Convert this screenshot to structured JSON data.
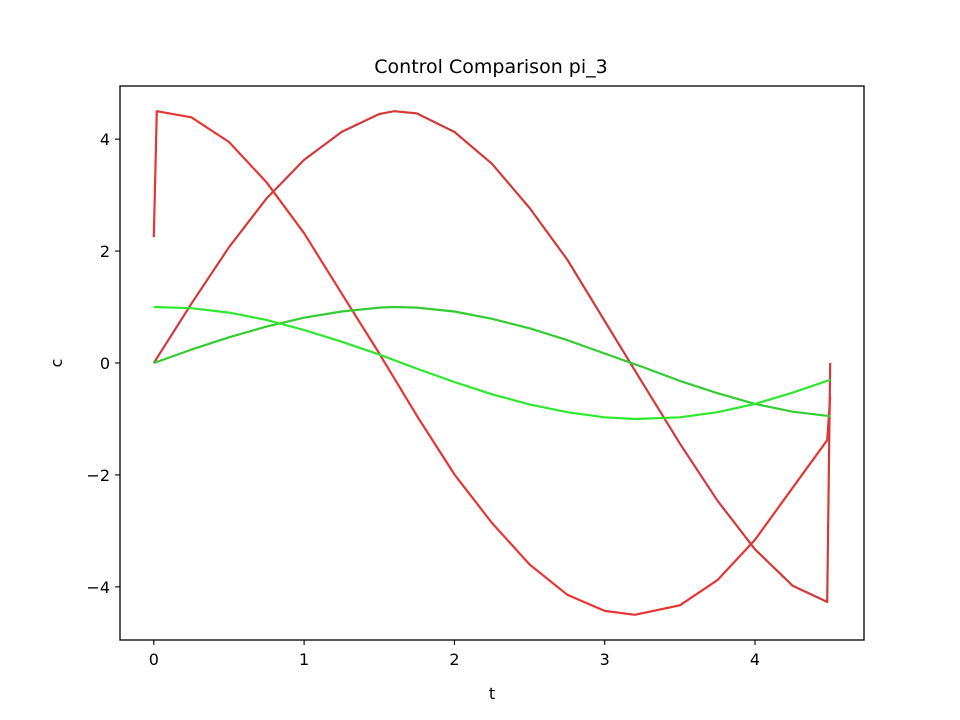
{
  "chart_data": {
    "type": "line",
    "title": "Control Comparison pi_3",
    "xlabel": "t",
    "ylabel": "c",
    "xlim": [
      -0.225,
      4.725
    ],
    "ylim": [
      -4.95,
      4.95
    ],
    "xticks": [
      0,
      1,
      2,
      3,
      4
    ],
    "yticks": [
      -4,
      -2,
      0,
      2,
      4
    ],
    "xtick_labels": [
      "0",
      "1",
      "2",
      "3",
      "4"
    ],
    "ytick_labels": [
      "−4",
      "−2",
      "0",
      "2",
      "4"
    ],
    "grid": false,
    "legend": "none",
    "series": [
      {
        "color": "#d03a3a",
        "x": [
          0,
          0.25,
          0.5,
          0.75,
          1.0,
          1.25,
          1.5,
          1.6,
          1.75,
          2.0,
          2.25,
          2.5,
          2.75,
          3.0,
          3.25,
          3.5,
          3.75,
          4.0,
          4.25,
          4.48,
          4.5
        ],
        "y": [
          0.0,
          1.06,
          2.07,
          2.94,
          3.63,
          4.13,
          4.45,
          4.5,
          4.46,
          4.13,
          3.56,
          2.77,
          1.85,
          0.75,
          -0.35,
          -1.44,
          -2.46,
          -3.33,
          -3.98,
          -4.27,
          0.0
        ]
      },
      {
        "color": "#e53535",
        "x": [
          0,
          0.02,
          0.25,
          0.5,
          0.75,
          1.0,
          1.25,
          1.5,
          1.75,
          2.0,
          2.25,
          2.5,
          2.75,
          3.0,
          3.2,
          3.5,
          3.75,
          4.0,
          4.25,
          4.48,
          4.5
        ],
        "y": [
          2.25,
          4.5,
          4.39,
          3.95,
          3.23,
          2.32,
          1.24,
          0.17,
          -0.94,
          -1.99,
          -2.86,
          -3.6,
          -4.14,
          -4.43,
          -4.5,
          -4.33,
          -3.88,
          -3.16,
          -2.23,
          -1.38,
          -0.6
        ]
      },
      {
        "color": "#33cc33",
        "x": [
          0,
          0.25,
          0.5,
          0.75,
          1.0,
          1.25,
          1.5,
          1.6,
          1.75,
          2.0,
          2.25,
          2.5,
          2.75,
          3.0,
          3.25,
          3.5,
          3.75,
          4.0,
          4.25,
          4.5
        ],
        "y": [
          0.0,
          0.24,
          0.46,
          0.65,
          0.81,
          0.92,
          0.99,
          1.0,
          0.99,
          0.92,
          0.79,
          0.62,
          0.41,
          0.17,
          -0.07,
          -0.32,
          -0.54,
          -0.73,
          -0.87,
          -0.95
        ]
      },
      {
        "color": "#2ee82e",
        "x": [
          0,
          0.25,
          0.5,
          0.75,
          1.0,
          1.25,
          1.5,
          1.75,
          2.0,
          2.25,
          2.5,
          2.75,
          3.0,
          3.2,
          3.5,
          3.75,
          4.0,
          4.25,
          4.5
        ],
        "y": [
          1.0,
          0.98,
          0.9,
          0.77,
          0.59,
          0.38,
          0.15,
          -0.1,
          -0.34,
          -0.56,
          -0.74,
          -0.88,
          -0.97,
          -1.0,
          -0.97,
          -0.88,
          -0.73,
          -0.53,
          -0.3
        ]
      }
    ]
  }
}
